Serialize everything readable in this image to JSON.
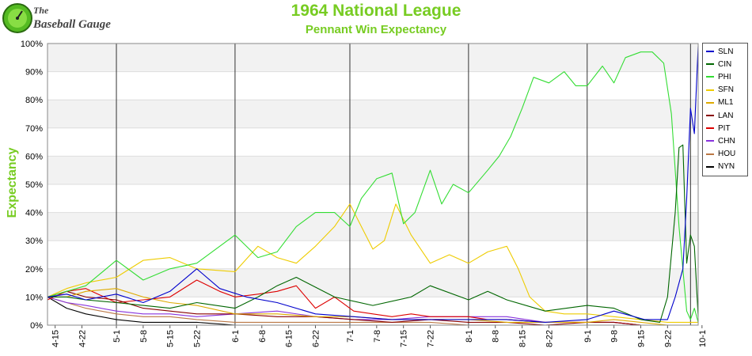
{
  "logo": {
    "line1": "The",
    "line2": "Baseball Gauge"
  },
  "chart_data": {
    "type": "line",
    "title": "1964 National League",
    "subtitle": "Pennant Win Expectancy",
    "ylabel": "Expectancy",
    "xlabel": "",
    "ylim": [
      0,
      100
    ],
    "yticks": [
      "0%",
      "10%",
      "20%",
      "30%",
      "40%",
      "50%",
      "60%",
      "70%",
      "80%",
      "90%",
      "100%"
    ],
    "xlim": [
      0,
      170
    ],
    "xticks": [
      {
        "label": "4-15",
        "x": 2
      },
      {
        "label": "4-22",
        "x": 9
      },
      {
        "label": "5-1",
        "x": 18
      },
      {
        "label": "5-8",
        "x": 25
      },
      {
        "label": "5-15",
        "x": 32
      },
      {
        "label": "5-22",
        "x": 39
      },
      {
        "label": "6-1",
        "x": 49
      },
      {
        "label": "6-8",
        "x": 56
      },
      {
        "label": "6-15",
        "x": 63
      },
      {
        "label": "6-22",
        "x": 70
      },
      {
        "label": "7-1",
        "x": 79
      },
      {
        "label": "7-8",
        "x": 86
      },
      {
        "label": "7-15",
        "x": 93
      },
      {
        "label": "7-22",
        "x": 100
      },
      {
        "label": "8-1",
        "x": 110
      },
      {
        "label": "8-8",
        "x": 117
      },
      {
        "label": "8-15",
        "x": 124
      },
      {
        "label": "8-22",
        "x": 131
      },
      {
        "label": "9-1",
        "x": 141
      },
      {
        "label": "9-8",
        "x": 148
      },
      {
        "label": "9-15",
        "x": 155
      },
      {
        "label": "9-22",
        "x": 162
      },
      {
        "label": "10-1",
        "x": 171
      }
    ],
    "month_lines": [
      18,
      49,
      79,
      110,
      141,
      168
    ],
    "grid": true,
    "legend_position": "right",
    "series": [
      {
        "name": "SLN",
        "color": "#0000cc",
        "x": [
          0,
          5,
          10,
          18,
          25,
          32,
          39,
          45,
          52,
          60,
          70,
          80,
          90,
          100,
          110,
          120,
          130,
          141,
          148,
          156,
          162,
          164,
          166,
          167,
          168,
          169,
          170
        ],
        "values": [
          10,
          11,
          9,
          11,
          8,
          12,
          20,
          13,
          10,
          8,
          4,
          3,
          2,
          2,
          2,
          2,
          1,
          2,
          5,
          2,
          2,
          10,
          20,
          45,
          77,
          68,
          99
        ]
      },
      {
        "name": "CIN",
        "color": "#006600",
        "x": [
          0,
          5,
          10,
          18,
          25,
          32,
          39,
          49,
          55,
          60,
          65,
          75,
          85,
          95,
          100,
          110,
          115,
          120,
          130,
          141,
          148,
          155,
          160,
          162,
          164,
          165,
          166,
          167,
          168,
          169,
          170
        ],
        "values": [
          10,
          10,
          9,
          8,
          7,
          6,
          8,
          6,
          10,
          14,
          17,
          10,
          7,
          10,
          14,
          9,
          12,
          9,
          5,
          7,
          6,
          2,
          1,
          10,
          40,
          63,
          64,
          22,
          32,
          28,
          3
        ]
      },
      {
        "name": "PHI",
        "color": "#33dd33",
        "x": [
          0,
          5,
          10,
          18,
          25,
          32,
          39,
          49,
          55,
          60,
          65,
          70,
          75,
          79,
          82,
          86,
          90,
          93,
          96,
          100,
          103,
          106,
          110,
          115,
          118,
          121,
          124,
          127,
          131,
          135,
          138,
          141,
          145,
          148,
          151,
          155,
          158,
          161,
          163,
          165,
          167,
          168,
          169,
          170
        ],
        "values": [
          10,
          12,
          14,
          23,
          16,
          20,
          22,
          32,
          24,
          26,
          35,
          40,
          40,
          35,
          45,
          52,
          54,
          36,
          40,
          55,
          43,
          50,
          47,
          55,
          60,
          67,
          77,
          88,
          86,
          90,
          85,
          85,
          92,
          86,
          95,
          97,
          97,
          93,
          75,
          35,
          5,
          2,
          6,
          1
        ]
      },
      {
        "name": "SFN",
        "color": "#eecc00",
        "x": [
          0,
          5,
          10,
          18,
          25,
          32,
          39,
          49,
          55,
          60,
          65,
          70,
          75,
          79,
          82,
          85,
          88,
          91,
          95,
          100,
          105,
          110,
          115,
          120,
          123,
          126,
          130,
          135,
          141,
          148,
          155,
          162,
          166,
          170
        ],
        "values": [
          10,
          13,
          15,
          17,
          23,
          24,
          20,
          19,
          28,
          24,
          22,
          28,
          35,
          43,
          35,
          27,
          30,
          43,
          32,
          22,
          25,
          22,
          26,
          28,
          20,
          10,
          5,
          4,
          4,
          3,
          2,
          1,
          1,
          1
        ]
      },
      {
        "name": "ML1",
        "color": "#ddaa00",
        "x": [
          0,
          5,
          10,
          18,
          25,
          32,
          39,
          49,
          60,
          70,
          80,
          90,
          100,
          110,
          120,
          130,
          141,
          148,
          155,
          162,
          170
        ],
        "values": [
          10,
          10,
          12,
          13,
          10,
          8,
          7,
          4,
          4,
          3,
          3,
          2,
          2,
          2,
          1,
          1,
          1,
          2,
          1,
          0,
          0
        ]
      },
      {
        "name": "LAN",
        "color": "#880000",
        "x": [
          0,
          5,
          10,
          18,
          25,
          32,
          39,
          49,
          60,
          70,
          80,
          90,
          100,
          110,
          120,
          130,
          141,
          148,
          155,
          162,
          170
        ],
        "values": [
          10,
          12,
          10,
          9,
          6,
          5,
          4,
          4,
          3,
          3,
          2,
          1,
          2,
          1,
          1,
          0,
          1,
          1,
          0,
          0,
          0
        ]
      },
      {
        "name": "PIT",
        "color": "#dd0000",
        "x": [
          0,
          5,
          10,
          18,
          25,
          32,
          39,
          45,
          49,
          55,
          60,
          65,
          70,
          75,
          80,
          85,
          90,
          95,
          100,
          110,
          115,
          120,
          130,
          141,
          148,
          155,
          162,
          170
        ],
        "values": [
          9,
          12,
          13,
          8,
          9,
          10,
          16,
          12,
          10,
          11,
          12,
          14,
          6,
          10,
          5,
          4,
          3,
          4,
          3,
          3,
          2,
          2,
          1,
          1,
          1,
          0,
          0,
          0
        ]
      },
      {
        "name": "CHN",
        "color": "#8833dd",
        "x": [
          0,
          5,
          10,
          18,
          25,
          32,
          39,
          49,
          60,
          70,
          80,
          90,
          100,
          110,
          120,
          130,
          141,
          148,
          155,
          162,
          170
        ],
        "values": [
          10,
          8,
          7,
          5,
          4,
          4,
          3,
          4,
          5,
          3,
          2,
          2,
          3,
          3,
          3,
          1,
          1,
          1,
          0,
          0,
          0
        ]
      },
      {
        "name": "HOU",
        "color": "#bb7744",
        "x": [
          0,
          5,
          10,
          18,
          25,
          32,
          39,
          49,
          60,
          70,
          80,
          90,
          100,
          110,
          120,
          130,
          141,
          148,
          155,
          162,
          170
        ],
        "values": [
          10,
          8,
          6,
          4,
          3,
          3,
          2,
          1,
          1,
          1,
          1,
          1,
          1,
          0,
          0,
          0,
          0,
          0,
          0,
          0,
          0
        ]
      },
      {
        "name": "NYN",
        "color": "#000000",
        "x": [
          0,
          5,
          10,
          18,
          25,
          32,
          39,
          49,
          60,
          70,
          80,
          90,
          100,
          110,
          120,
          130,
          141,
          148,
          155,
          162,
          170
        ],
        "values": [
          10,
          6,
          4,
          2,
          1,
          1,
          1,
          0,
          0,
          0,
          0,
          0,
          0,
          0,
          0,
          0,
          0,
          0,
          0,
          0,
          0
        ]
      }
    ]
  }
}
